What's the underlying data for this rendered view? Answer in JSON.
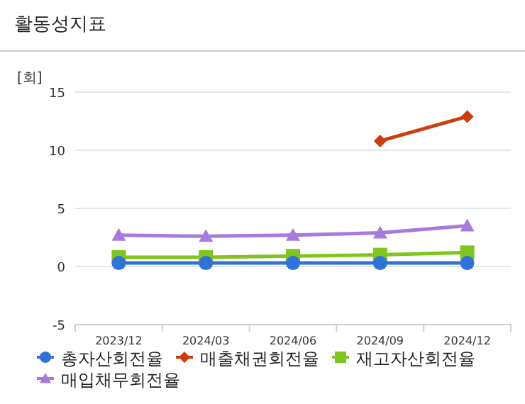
{
  "chart_data": {
    "type": "line",
    "title": "활동성지표",
    "ylabel": "[회]",
    "categories": [
      "2023/12",
      "2024/03",
      "2024/06",
      "2024/09",
      "2024/12"
    ],
    "series": [
      {
        "name": "총자산회전율",
        "color": "#2f72d8",
        "marker": "circle",
        "values": [
          0.3,
          0.3,
          0.3,
          0.3,
          0.3
        ]
      },
      {
        "name": "매출채권회전율",
        "color": "#cc3d0e",
        "marker": "diamond",
        "values": [
          null,
          null,
          null,
          10.8,
          12.9
        ]
      },
      {
        "name": "재고자산회전율",
        "color": "#7fc41f",
        "marker": "square",
        "values": [
          0.8,
          0.8,
          0.9,
          1.0,
          1.2
        ]
      },
      {
        "name": "매입채무회전율",
        "color": "#a77bdb",
        "marker": "triangle",
        "values": [
          2.7,
          2.6,
          2.7,
          2.9,
          3.5
        ]
      }
    ],
    "ylim": [
      -5,
      15
    ],
    "yticks": [
      -5,
      0,
      5,
      10,
      15
    ],
    "grid": "y",
    "legend": "bottom"
  }
}
